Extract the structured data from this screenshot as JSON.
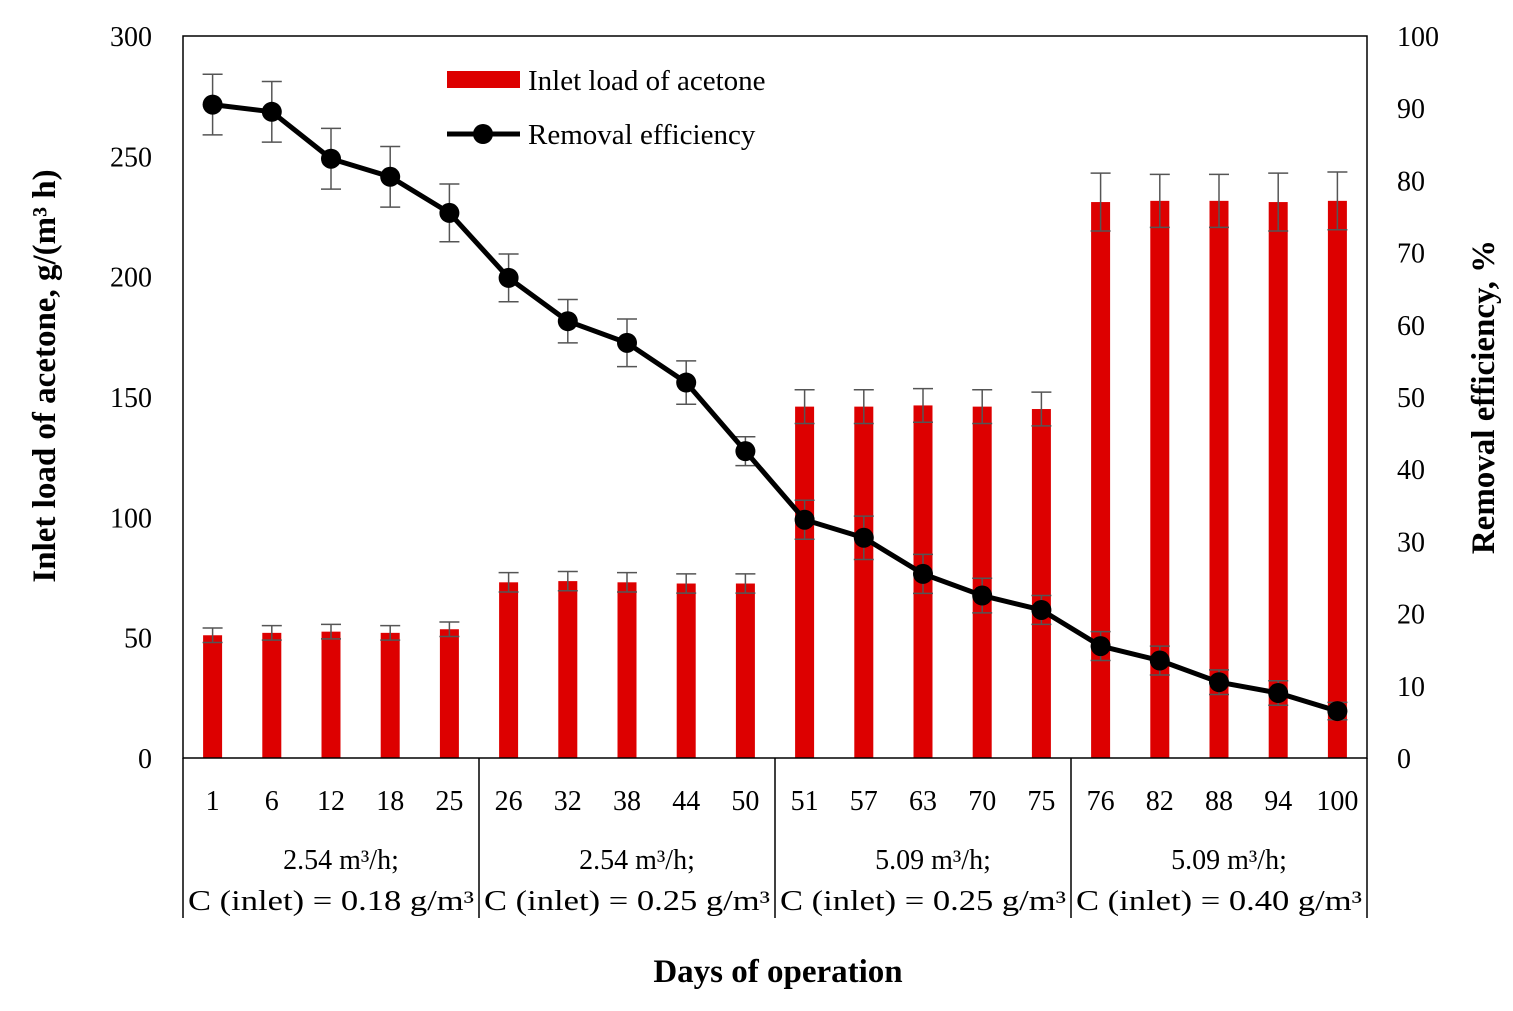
{
  "chart_data": {
    "type": "bar+line",
    "xlabel": "Days of operation",
    "y_left_label": "Inlet load of acetone, g/(m³ h)",
    "y_right_label": "Removal efficiency, %",
    "y_left_lim": [
      0,
      300
    ],
    "y_left_ticks": [
      "0",
      "50",
      "100",
      "150",
      "200",
      "250",
      "300"
    ],
    "y_right_lim": [
      0,
      100
    ],
    "y_right_ticks": [
      "0",
      "10",
      "20",
      "30",
      "40",
      "50",
      "60",
      "70",
      "80",
      "90",
      "100"
    ],
    "categories": [
      "1",
      "6",
      "12",
      "18",
      "25",
      "26",
      "32",
      "38",
      "44",
      "50",
      "51",
      "57",
      "63",
      "70",
      "75",
      "76",
      "82",
      "88",
      "94",
      "100"
    ],
    "series": [
      {
        "name": "Inlet load of acetone",
        "type": "bar",
        "axis": "left",
        "color": "#dd0000",
        "values": [
          51,
          52,
          52.5,
          52,
          53.5,
          73,
          73.5,
          73,
          72.5,
          72.5,
          146,
          146,
          146.5,
          146,
          145,
          231,
          231.5,
          231.5,
          231,
          231.5
        ],
        "error": [
          3,
          3,
          3,
          3,
          3,
          4,
          4,
          4,
          4,
          4,
          7,
          7,
          7,
          7,
          7,
          12,
          11,
          11,
          12,
          12
        ]
      },
      {
        "name": "Removal efficiency",
        "type": "line",
        "axis": "right",
        "color": "#000000",
        "values": [
          90.5,
          89.5,
          83,
          80.5,
          75.5,
          66.5,
          60.5,
          57.5,
          52,
          42.5,
          33,
          30.5,
          25.5,
          22.5,
          20.5,
          15.5,
          13.5,
          10.5,
          9,
          6.5
        ],
        "error": [
          4.2,
          4.2,
          4.2,
          4.2,
          4.0,
          3.3,
          3.0,
          3.3,
          3.0,
          2.0,
          2.7,
          3.0,
          2.7,
          2.4,
          2.0,
          2.0,
          2.0,
          1.7,
          1.7,
          1.2
        ]
      }
    ],
    "groups": [
      {
        "line1": "2.54 m³/h;",
        "line2": "C (inlet) = 0.18 g/m³"
      },
      {
        "line1": "2.54 m³/h;",
        "line2": "C (inlet) = 0.25 g/m³"
      },
      {
        "line1": "5.09 m³/h;",
        "line2": "C (inlet) = 0.25 g/m³"
      },
      {
        "line1": "5.09 m³/h;",
        "line2": "C (inlet) = 0.40 g/m³"
      }
    ],
    "legend": {
      "position": "top-center",
      "entries": [
        "Inlet load of acetone",
        "Removal efficiency"
      ]
    },
    "grid": false
  }
}
